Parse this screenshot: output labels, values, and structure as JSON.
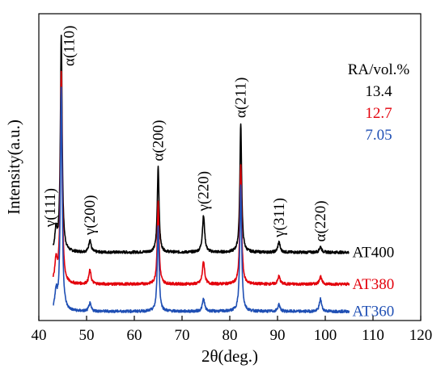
{
  "chart_data": {
    "type": "line",
    "title": "",
    "xlabel": "2θ(deg.)",
    "ylabel": "Intensity(a.u.)",
    "xlim": [
      40,
      120
    ],
    "x_ticks": [
      40,
      50,
      60,
      70,
      80,
      90,
      100,
      110,
      120
    ],
    "y_ticks_shown": false,
    "grid": false,
    "series": [
      {
        "name": "AT400",
        "color": "#000000",
        "baseline": 3.0,
        "peaks": [
          {
            "x": 43.6,
            "height": 0.9
          },
          {
            "x": 44.7,
            "height": 9.5
          },
          {
            "x": 50.7,
            "height": 0.55
          },
          {
            "x": 65.0,
            "height": 3.8
          },
          {
            "x": 74.5,
            "height": 1.6
          },
          {
            "x": 82.3,
            "height": 5.7
          },
          {
            "x": 90.3,
            "height": 0.45
          },
          {
            "x": 99.0,
            "height": 0.25
          }
        ]
      },
      {
        "name": "AT380",
        "color": "#e3000b",
        "baseline": 1.6,
        "peaks": [
          {
            "x": 43.6,
            "height": 1.0
          },
          {
            "x": 44.7,
            "height": 9.3
          },
          {
            "x": 50.7,
            "height": 0.6
          },
          {
            "x": 65.0,
            "height": 3.6
          },
          {
            "x": 74.5,
            "height": 1.0
          },
          {
            "x": 82.3,
            "height": 5.2
          },
          {
            "x": 90.3,
            "height": 0.35
          },
          {
            "x": 99.0,
            "height": 0.35
          }
        ]
      },
      {
        "name": "AT360",
        "color": "#1f4fb4",
        "baseline": 0.4,
        "peaks": [
          {
            "x": 43.6,
            "height": 0.8
          },
          {
            "x": 44.7,
            "height": 9.8
          },
          {
            "x": 50.7,
            "height": 0.35
          },
          {
            "x": 65.0,
            "height": 3.8
          },
          {
            "x": 74.5,
            "height": 0.55
          },
          {
            "x": 82.3,
            "height": 5.6
          },
          {
            "x": 90.3,
            "height": 0.3
          },
          {
            "x": 99.0,
            "height": 0.55
          }
        ]
      }
    ],
    "peak_labels": [
      {
        "text": "γ(111)",
        "x": 43.6
      },
      {
        "text": "α(110)",
        "x": 44.7
      },
      {
        "text": "γ(200)",
        "x": 50.7
      },
      {
        "text": "α(200)",
        "x": 65.0
      },
      {
        "text": "γ(220)",
        "x": 74.5
      },
      {
        "text": "α(211)",
        "x": 82.3
      },
      {
        "text": "γ(311)",
        "x": 90.3
      },
      {
        "text": "α(220)",
        "x": 99.0
      }
    ],
    "legend_header": "RA/vol.%",
    "legend_values": [
      {
        "value": "13.4",
        "color": "#000000"
      },
      {
        "value": "12.7",
        "color": "#e3000b"
      },
      {
        "value": "7.05",
        "color": "#1f4fb4"
      }
    ],
    "legend_placement": "top-right"
  }
}
